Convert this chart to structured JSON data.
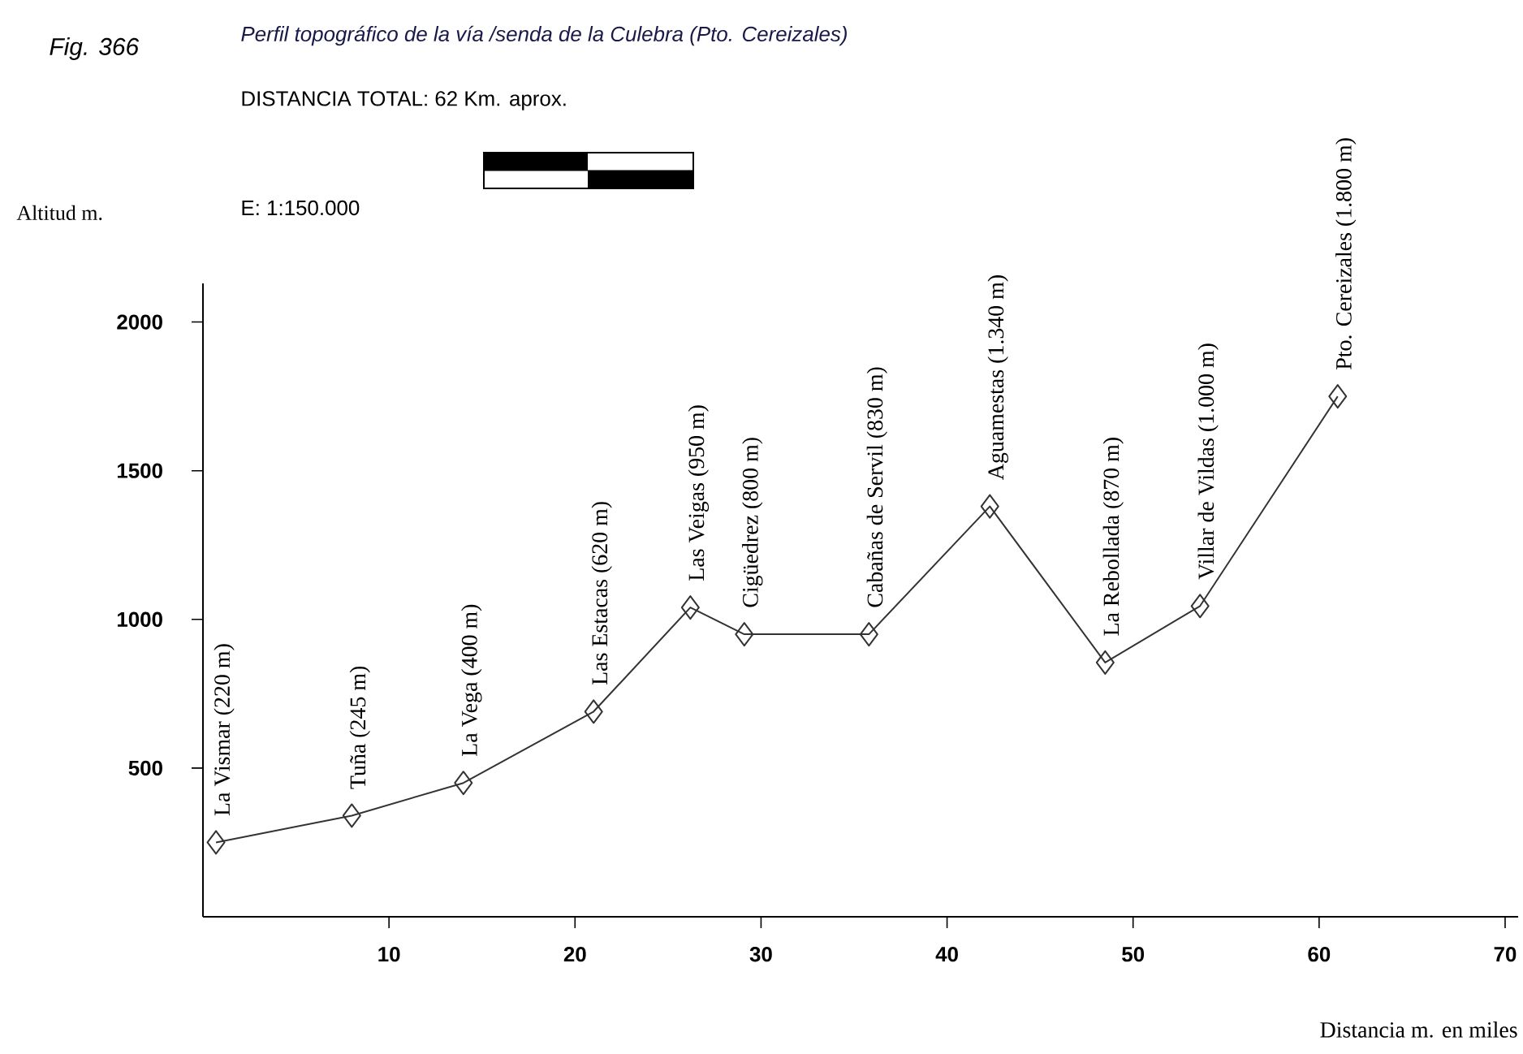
{
  "chart_data": {
    "type": "line",
    "title": "Perfil topográfico de la vía /senda de la Culebra (Pto. Cereizales)",
    "subtitle": "DISTANCIA TOTAL: 62 Km. aprox.",
    "xlabel": "Distancia m. en miles",
    "ylabel": "Altitud m.",
    "x": [
      0.7,
      8,
      14,
      21,
      26.2,
      29.1,
      35.8,
      42.3,
      48.5,
      53.6,
      61
    ],
    "series": [
      {
        "color": "#333333",
        "values": [
          250,
          340,
          450,
          690,
          1040,
          950,
          950,
          1380,
          855,
          1045,
          1750
        ]
      }
    ],
    "xlim": [
      0,
      70.7
    ],
    "xticks": [
      10,
      20,
      30,
      40,
      50,
      60,
      70
    ],
    "ylim": [
      0,
      2130
    ],
    "yticks": [
      500,
      1000,
      1500,
      2000
    ],
    "marker": "diamond",
    "line_style": "solid",
    "grid": false,
    "annotations": [
      "Fig. 366",
      "E: 1:150.000",
      {
        "text": "La Vismar (220 m)",
        "x": 0.7,
        "y": 250
      },
      {
        "text": "Tuña (245 m)",
        "x": 8,
        "y": 340
      },
      {
        "text": "La Vega (400 m)",
        "x": 14,
        "y": 450
      },
      {
        "text": "Las Estacas (620 m)",
        "x": 21,
        "y": 690
      },
      {
        "text": "Las Veigas (950 m)",
        "x": 26.2,
        "y": 1040
      },
      {
        "text": "Cigüedrez (800 m)",
        "x": 29.1,
        "y": 950
      },
      {
        "text": "Cabañas de Servil (830 m)",
        "x": 35.8,
        "y": 950
      },
      {
        "text": "Aguamestas (1.340 m)",
        "x": 42.3,
        "y": 1380
      },
      {
        "text": "La Rebollada (870 m)",
        "x": 48.5,
        "y": 855
      },
      {
        "text": "Villar de Vildas (1.000 m)",
        "x": 53.6,
        "y": 1045
      },
      {
        "text": "Pto. Cereizales (1.800 m)",
        "x": 61,
        "y": 1750
      }
    ]
  }
}
